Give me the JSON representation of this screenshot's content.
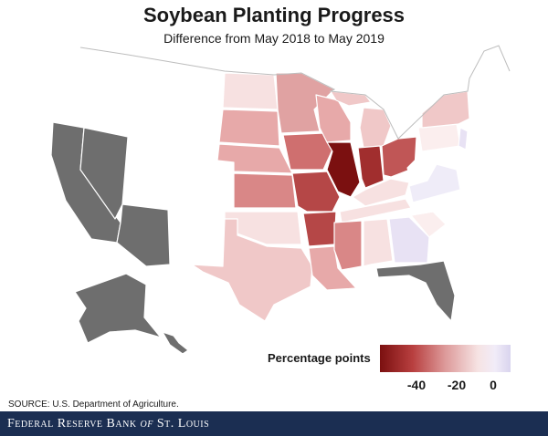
{
  "title": "Soybean Planting Progress",
  "subtitle": "Difference from May 2018 to May 2019",
  "legend": {
    "label": "Percentage points",
    "ticks": [
      "-40",
      "-20",
      "0"
    ]
  },
  "source": "SOURCE: U.S. Department of Agriculture.",
  "footer": {
    "prefix": "Federal Reserve Bank",
    "of": "of",
    "suffix": "St. Louis"
  },
  "colors": {
    "no_data": "#ffffff",
    "not_reported": "#6e6e6e",
    "darkest": "#7b1010",
    "dark": "#a12e2e",
    "medium_dark": "#c05656",
    "medium": "#d98787",
    "medium_light": "#e7a9a9",
    "light": "#f0c8c8",
    "very_light": "#f7e1e1",
    "faint": "#fbeeee",
    "lavender": "#e8e2f4",
    "lavender_light": "#efecf8"
  }
}
